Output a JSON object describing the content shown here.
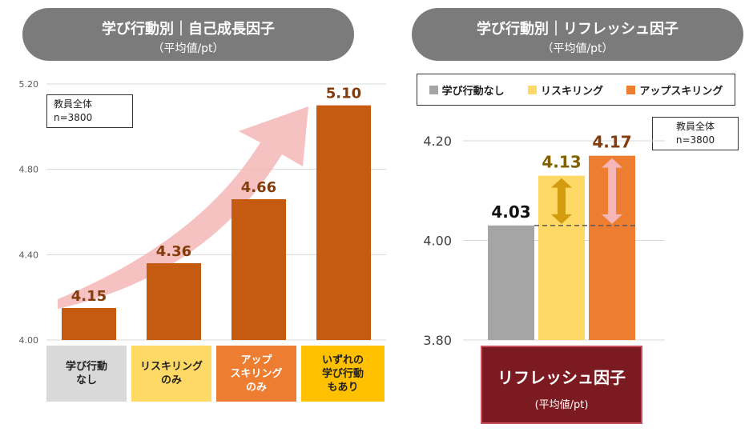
{
  "left_panel": {
    "title": "学び行動別｜自己成長因子",
    "subtitle": "（平均値/pt）",
    "note_line1": "教員全体",
    "note_line2": "n=3800"
  },
  "right_panel": {
    "title": "学び行動別｜リフレッシュ因子",
    "subtitle": "（平均値/pt）",
    "note_line1": "教員全体",
    "note_line2": "n=3800",
    "footer_title": "リフレッシュ因子",
    "footer_subtitle": "(平均値/pt)"
  },
  "chart_data": [
    {
      "type": "bar",
      "title": "学び行動別｜自己成長因子",
      "subtitle": "（平均値/pt）",
      "categories": [
        "学び行動\nなし",
        "リスキリング\nのみ",
        "アップ\nスキリング\nのみ",
        "いずれの\n学び行動\nもあり"
      ],
      "values": [
        4.15,
        4.36,
        4.66,
        5.1
      ],
      "value_labels": [
        "4.15",
        "4.36",
        "4.66",
        "5.10"
      ],
      "yticks": [
        "4.00",
        "4.40",
        "4.80",
        "5.20"
      ],
      "ylim": [
        4.0,
        5.2
      ],
      "grid": true,
      "bar_color": "#c55a11",
      "label_color": "#843c0c",
      "category_colors": [
        "#d9d9d9",
        "#ffd966",
        "#ed7d31",
        "#ffc000"
      ],
      "arrow_color": "#f4b6b6"
    },
    {
      "type": "bar",
      "title": "学び行動別｜リフレッシュ因子",
      "subtitle": "（平均値/pt）",
      "series": [
        {
          "name": "学び行動なし",
          "value": 4.03,
          "label": "4.03",
          "color": "#a5a5a5",
          "label_color": "#111111"
        },
        {
          "name": "リスキリング",
          "value": 4.13,
          "label": "4.13",
          "color": "#ffd966",
          "label_color": "#806000"
        },
        {
          "name": "アップスキリング",
          "value": 4.17,
          "label": "4.17",
          "color": "#ed7d31",
          "label_color": "#843c0c"
        }
      ],
      "yticks": [
        "3.80",
        "4.00",
        "4.20"
      ],
      "ylim": [
        3.8,
        4.2
      ],
      "grid": true,
      "legend": "top",
      "baseline_value": 4.03,
      "arrow_colors": [
        "#d39b0e",
        "#f4b6b6"
      ]
    }
  ]
}
